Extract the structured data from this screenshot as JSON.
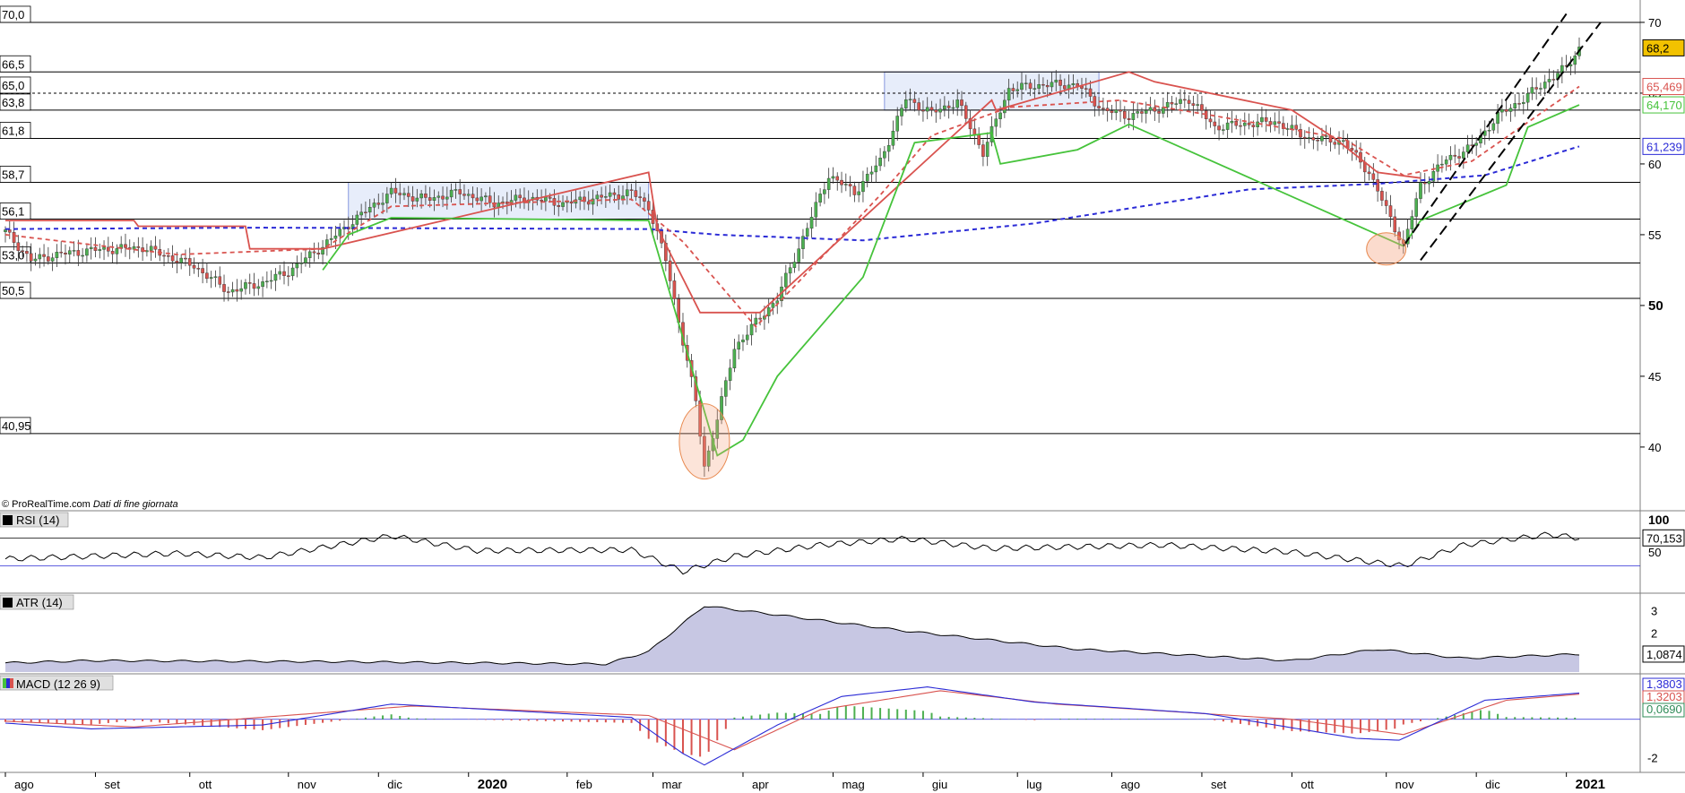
{
  "copyright": "© ProRealTime.com",
  "copyright_note": "Dati di fine giornata",
  "colors": {
    "up": "#4caf50",
    "down": "#d9534f",
    "redline": "#d9534f",
    "greenline": "#46c33b",
    "blueline": "#2b2bd6",
    "last": "#f2c200",
    "ellipse": "#f4a582",
    "box": "#c9d6f5",
    "atrfill": "#9999cc"
  },
  "axis_labels": {
    "price_ticks": [
      "70",
      "65",
      "60",
      "55",
      "50",
      "45",
      "40"
    ],
    "price_tick_values": [
      70,
      65,
      60,
      55,
      50,
      45,
      40
    ],
    "bold_tick": "50",
    "rsi_ticks": [
      "100",
      "50"
    ],
    "atr_ticks": [
      "3",
      "2"
    ],
    "macd_ticks": [
      "-2"
    ],
    "months": [
      "ago",
      "set",
      "ott",
      "nov",
      "dic",
      "2020",
      "feb",
      "mar",
      "apr",
      "mag",
      "giu",
      "lug",
      "ago",
      "set",
      "ott",
      "nov",
      "dic",
      "2021"
    ]
  },
  "levels": [
    {
      "label": "70,0",
      "value": 70.0
    },
    {
      "label": "66,5",
      "value": 66.5
    },
    {
      "label": "65,0",
      "value": 65.0
    },
    {
      "label": "63,8",
      "value": 63.8
    },
    {
      "label": "61,8",
      "value": 61.8
    },
    {
      "label": "58,7",
      "value": 58.7
    },
    {
      "label": "56,1",
      "value": 56.1
    },
    {
      "label": "53,0",
      "value": 53.0
    },
    {
      "label": "50,5",
      "value": 50.5
    },
    {
      "label": "40,95",
      "value": 40.95
    }
  ],
  "value_boxes": [
    {
      "label": "68,2",
      "value": 68.2,
      "kind": "last"
    },
    {
      "label": "65,469",
      "value": 65.469,
      "kind": "red"
    },
    {
      "label": "64,170",
      "value": 64.17,
      "kind": "green"
    },
    {
      "label": "61,239",
      "value": 61.239,
      "kind": "blue"
    }
  ],
  "panels": {
    "rsi": {
      "title": "RSI (14)",
      "value_label": "70,153"
    },
    "atr": {
      "title": "ATR (14)",
      "value_label": "1,0874"
    },
    "macd": {
      "title": "MACD (12 26 9)",
      "values": [
        "1,3803",
        "1,3203",
        "0,0690"
      ]
    }
  },
  "chart_data": {
    "type": "candlestick",
    "title": "",
    "y_range": [
      35.5,
      71.2
    ],
    "x_months": [
      "ago 2019",
      "set 2019",
      "ott 2019",
      "nov 2019",
      "dic 2019",
      "gen 2020",
      "feb 2020",
      "mar 2020",
      "apr 2020",
      "mag 2020",
      "giu 2020",
      "lug 2020",
      "ago 2020",
      "set 2020",
      "ott 2020",
      "nov 2020",
      "dic 2020",
      "gen 2021"
    ],
    "close_series": [
      {
        "index": 0,
        "value": 55.2
      },
      {
        "index": 6,
        "value": 53.2
      },
      {
        "index": 12,
        "value": 53.6
      },
      {
        "index": 20,
        "value": 53.9
      },
      {
        "index": 32,
        "value": 54.1
      },
      {
        "index": 44,
        "value": 52.8
      },
      {
        "index": 52,
        "value": 51.0
      },
      {
        "index": 60,
        "value": 51.6
      },
      {
        "index": 66,
        "value": 52.4
      },
      {
        "index": 74,
        "value": 54.2
      },
      {
        "index": 82,
        "value": 56.2
      },
      {
        "index": 90,
        "value": 58.0
      },
      {
        "index": 98,
        "value": 57.5
      },
      {
        "index": 106,
        "value": 58.0
      },
      {
        "index": 114,
        "value": 57.2
      },
      {
        "index": 122,
        "value": 57.6
      },
      {
        "index": 130,
        "value": 57.2
      },
      {
        "index": 138,
        "value": 57.6
      },
      {
        "index": 146,
        "value": 58.0
      },
      {
        "index": 150,
        "value": 57.0
      },
      {
        "index": 154,
        "value": 53.2
      },
      {
        "index": 158,
        "value": 47.5
      },
      {
        "index": 161,
        "value": 43.2
      },
      {
        "index": 163,
        "value": 38.6
      },
      {
        "index": 166,
        "value": 42.0
      },
      {
        "index": 170,
        "value": 47.0
      },
      {
        "index": 175,
        "value": 48.8
      },
      {
        "index": 180,
        "value": 50.5
      },
      {
        "index": 186,
        "value": 54.8
      },
      {
        "index": 192,
        "value": 59.2
      },
      {
        "index": 198,
        "value": 58.0
      },
      {
        "index": 204,
        "value": 60.2
      },
      {
        "index": 210,
        "value": 64.6
      },
      {
        "index": 216,
        "value": 63.6
      },
      {
        "index": 222,
        "value": 64.4
      },
      {
        "index": 228,
        "value": 60.8
      },
      {
        "index": 234,
        "value": 65.3
      },
      {
        "index": 242,
        "value": 65.6
      },
      {
        "index": 250,
        "value": 65.6
      },
      {
        "index": 256,
        "value": 63.8
      },
      {
        "index": 262,
        "value": 63.4
      },
      {
        "index": 270,
        "value": 64.0
      },
      {
        "index": 276,
        "value": 64.6
      },
      {
        "index": 282,
        "value": 62.6
      },
      {
        "index": 288,
        "value": 62.8
      },
      {
        "index": 296,
        "value": 63.0
      },
      {
        "index": 304,
        "value": 61.8
      },
      {
        "index": 312,
        "value": 61.6
      },
      {
        "index": 318,
        "value": 59.4
      },
      {
        "index": 322,
        "value": 56.8
      },
      {
        "index": 326,
        "value": 54.2
      },
      {
        "index": 330,
        "value": 58.5
      },
      {
        "index": 336,
        "value": 60.3
      },
      {
        "index": 342,
        "value": 61.2
      },
      {
        "index": 348,
        "value": 63.4
      },
      {
        "index": 354,
        "value": 64.6
      },
      {
        "index": 360,
        "value": 66.0
      },
      {
        "index": 364,
        "value": 66.8
      },
      {
        "index": 367,
        "value": 68.2
      }
    ],
    "bar_count": 368,
    "red_dashed_ma": [
      {
        "index": 0,
        "value": 55.0
      },
      {
        "index": 40,
        "value": 53.6
      },
      {
        "index": 74,
        "value": 54.0
      },
      {
        "index": 90,
        "value": 57.0
      },
      {
        "index": 146,
        "value": 57.5
      },
      {
        "index": 158,
        "value": 54.5
      },
      {
        "index": 175,
        "value": 48.5
      },
      {
        "index": 186,
        "value": 52.0
      },
      {
        "index": 204,
        "value": 57.8
      },
      {
        "index": 216,
        "value": 62.0
      },
      {
        "index": 234,
        "value": 64.0
      },
      {
        "index": 260,
        "value": 64.5
      },
      {
        "index": 280,
        "value": 63.5
      },
      {
        "index": 312,
        "value": 61.8
      },
      {
        "index": 326,
        "value": 59.2
      },
      {
        "index": 342,
        "value": 60.2
      },
      {
        "index": 367,
        "value": 65.469
      }
    ],
    "blue_dashed_ma": [
      {
        "index": 0,
        "value": 55.4
      },
      {
        "index": 60,
        "value": 55.5
      },
      {
        "index": 150,
        "value": 55.4
      },
      {
        "index": 166,
        "value": 55.0
      },
      {
        "index": 200,
        "value": 54.6
      },
      {
        "index": 240,
        "value": 55.8
      },
      {
        "index": 290,
        "value": 58.2
      },
      {
        "index": 320,
        "value": 58.6
      },
      {
        "index": 345,
        "value": 59.2
      },
      {
        "index": 367,
        "value": 61.239
      }
    ],
    "red_stop": [
      {
        "index": 0,
        "value": 56.0
      },
      {
        "index": 30,
        "value": 56.0
      },
      {
        "index": 31,
        "value": 55.6
      },
      {
        "index": 56,
        "value": 55.6
      },
      {
        "index": 57,
        "value": 54.0
      },
      {
        "index": 74,
        "value": 54.0
      },
      {
        "index": 150,
        "value": 59.4
      },
      {
        "index": 152,
        "value": 55.5
      },
      {
        "index": 162,
        "value": 49.5
      },
      {
        "index": 176,
        "value": 49.5
      },
      {
        "index": 230,
        "value": 64.5
      },
      {
        "index": 231,
        "value": 63.8
      },
      {
        "index": 262,
        "value": 66.5
      },
      {
        "index": 268,
        "value": 65.8
      },
      {
        "index": 300,
        "value": 63.8
      },
      {
        "index": 310,
        "value": 61.8
      },
      {
        "index": 320,
        "value": 59.4
      },
      {
        "index": 330,
        "value": 59.0
      }
    ],
    "green_stop": [
      {
        "index": 74,
        "value": 52.5
      },
      {
        "index": 80,
        "value": 55.0
      },
      {
        "index": 90,
        "value": 56.2
      },
      {
        "index": 150,
        "value": 56.0
      },
      {
        "index": 166,
        "value": 39.4
      },
      {
        "index": 172,
        "value": 40.5
      },
      {
        "index": 180,
        "value": 45.0
      },
      {
        "index": 200,
        "value": 52.0
      },
      {
        "index": 212,
        "value": 61.5
      },
      {
        "index": 230,
        "value": 62.2
      },
      {
        "index": 232,
        "value": 60.0
      },
      {
        "index": 250,
        "value": 61.0
      },
      {
        "index": 262,
        "value": 62.8
      },
      {
        "index": 326,
        "value": 54.2
      },
      {
        "index": 330,
        "value": 56.0
      },
      {
        "index": 350,
        "value": 58.5
      },
      {
        "index": 355,
        "value": 62.6
      },
      {
        "index": 367,
        "value": 64.17
      }
    ],
    "rsi": {
      "range": [
        0,
        100
      ],
      "points": [
        {
          "index": 0,
          "value": 40
        },
        {
          "index": 40,
          "value": 48
        },
        {
          "index": 60,
          "value": 42
        },
        {
          "index": 90,
          "value": 73
        },
        {
          "index": 110,
          "value": 52
        },
        {
          "index": 146,
          "value": 53
        },
        {
          "index": 158,
          "value": 22
        },
        {
          "index": 170,
          "value": 44
        },
        {
          "index": 190,
          "value": 60
        },
        {
          "index": 210,
          "value": 69
        },
        {
          "index": 230,
          "value": 55
        },
        {
          "index": 270,
          "value": 60
        },
        {
          "index": 300,
          "value": 50
        },
        {
          "index": 326,
          "value": 30
        },
        {
          "index": 340,
          "value": 60
        },
        {
          "index": 360,
          "value": 75
        },
        {
          "index": 367,
          "value": 70.153
        }
      ]
    },
    "atr": {
      "range": [
        0.3,
        3.6
      ],
      "points": [
        {
          "index": 0,
          "value": 0.7
        },
        {
          "index": 20,
          "value": 0.8
        },
        {
          "index": 80,
          "value": 0.75
        },
        {
          "index": 140,
          "value": 0.65
        },
        {
          "index": 150,
          "value": 1.2
        },
        {
          "index": 163,
          "value": 3.2
        },
        {
          "index": 176,
          "value": 2.9
        },
        {
          "index": 210,
          "value": 2.1
        },
        {
          "index": 250,
          "value": 1.3
        },
        {
          "index": 300,
          "value": 0.8
        },
        {
          "index": 320,
          "value": 1.3
        },
        {
          "index": 340,
          "value": 0.9
        },
        {
          "index": 367,
          "value": 1.0874
        }
      ]
    },
    "macd": {
      "range": [
        -2.6,
        2.2
      ],
      "macd_line": [
        {
          "index": 0,
          "value": -0.2
        },
        {
          "index": 20,
          "value": -0.5
        },
        {
          "index": 60,
          "value": -0.3
        },
        {
          "index": 90,
          "value": 0.8
        },
        {
          "index": 146,
          "value": 0.1
        },
        {
          "index": 158,
          "value": -1.8
        },
        {
          "index": 163,
          "value": -2.4
        },
        {
          "index": 180,
          "value": -0.3
        },
        {
          "index": 195,
          "value": 1.2
        },
        {
          "index": 215,
          "value": 1.7
        },
        {
          "index": 240,
          "value": 0.9
        },
        {
          "index": 280,
          "value": 0.3
        },
        {
          "index": 315,
          "value": -1.0
        },
        {
          "index": 325,
          "value": -1.1
        },
        {
          "index": 345,
          "value": 1.0
        },
        {
          "index": 367,
          "value": 1.3803
        }
      ],
      "signal_line": [
        {
          "index": 0,
          "value": -0.1
        },
        {
          "index": 30,
          "value": -0.4
        },
        {
          "index": 95,
          "value": 0.7
        },
        {
          "index": 150,
          "value": 0.2
        },
        {
          "index": 170,
          "value": -1.6
        },
        {
          "index": 190,
          "value": 0.5
        },
        {
          "index": 218,
          "value": 1.5
        },
        {
          "index": 245,
          "value": 0.8
        },
        {
          "index": 300,
          "value": 0.0
        },
        {
          "index": 326,
          "value": -0.8
        },
        {
          "index": 350,
          "value": 1.0
        },
        {
          "index": 367,
          "value": 1.3203
        }
      ],
      "histogram_last": 0.069
    }
  }
}
